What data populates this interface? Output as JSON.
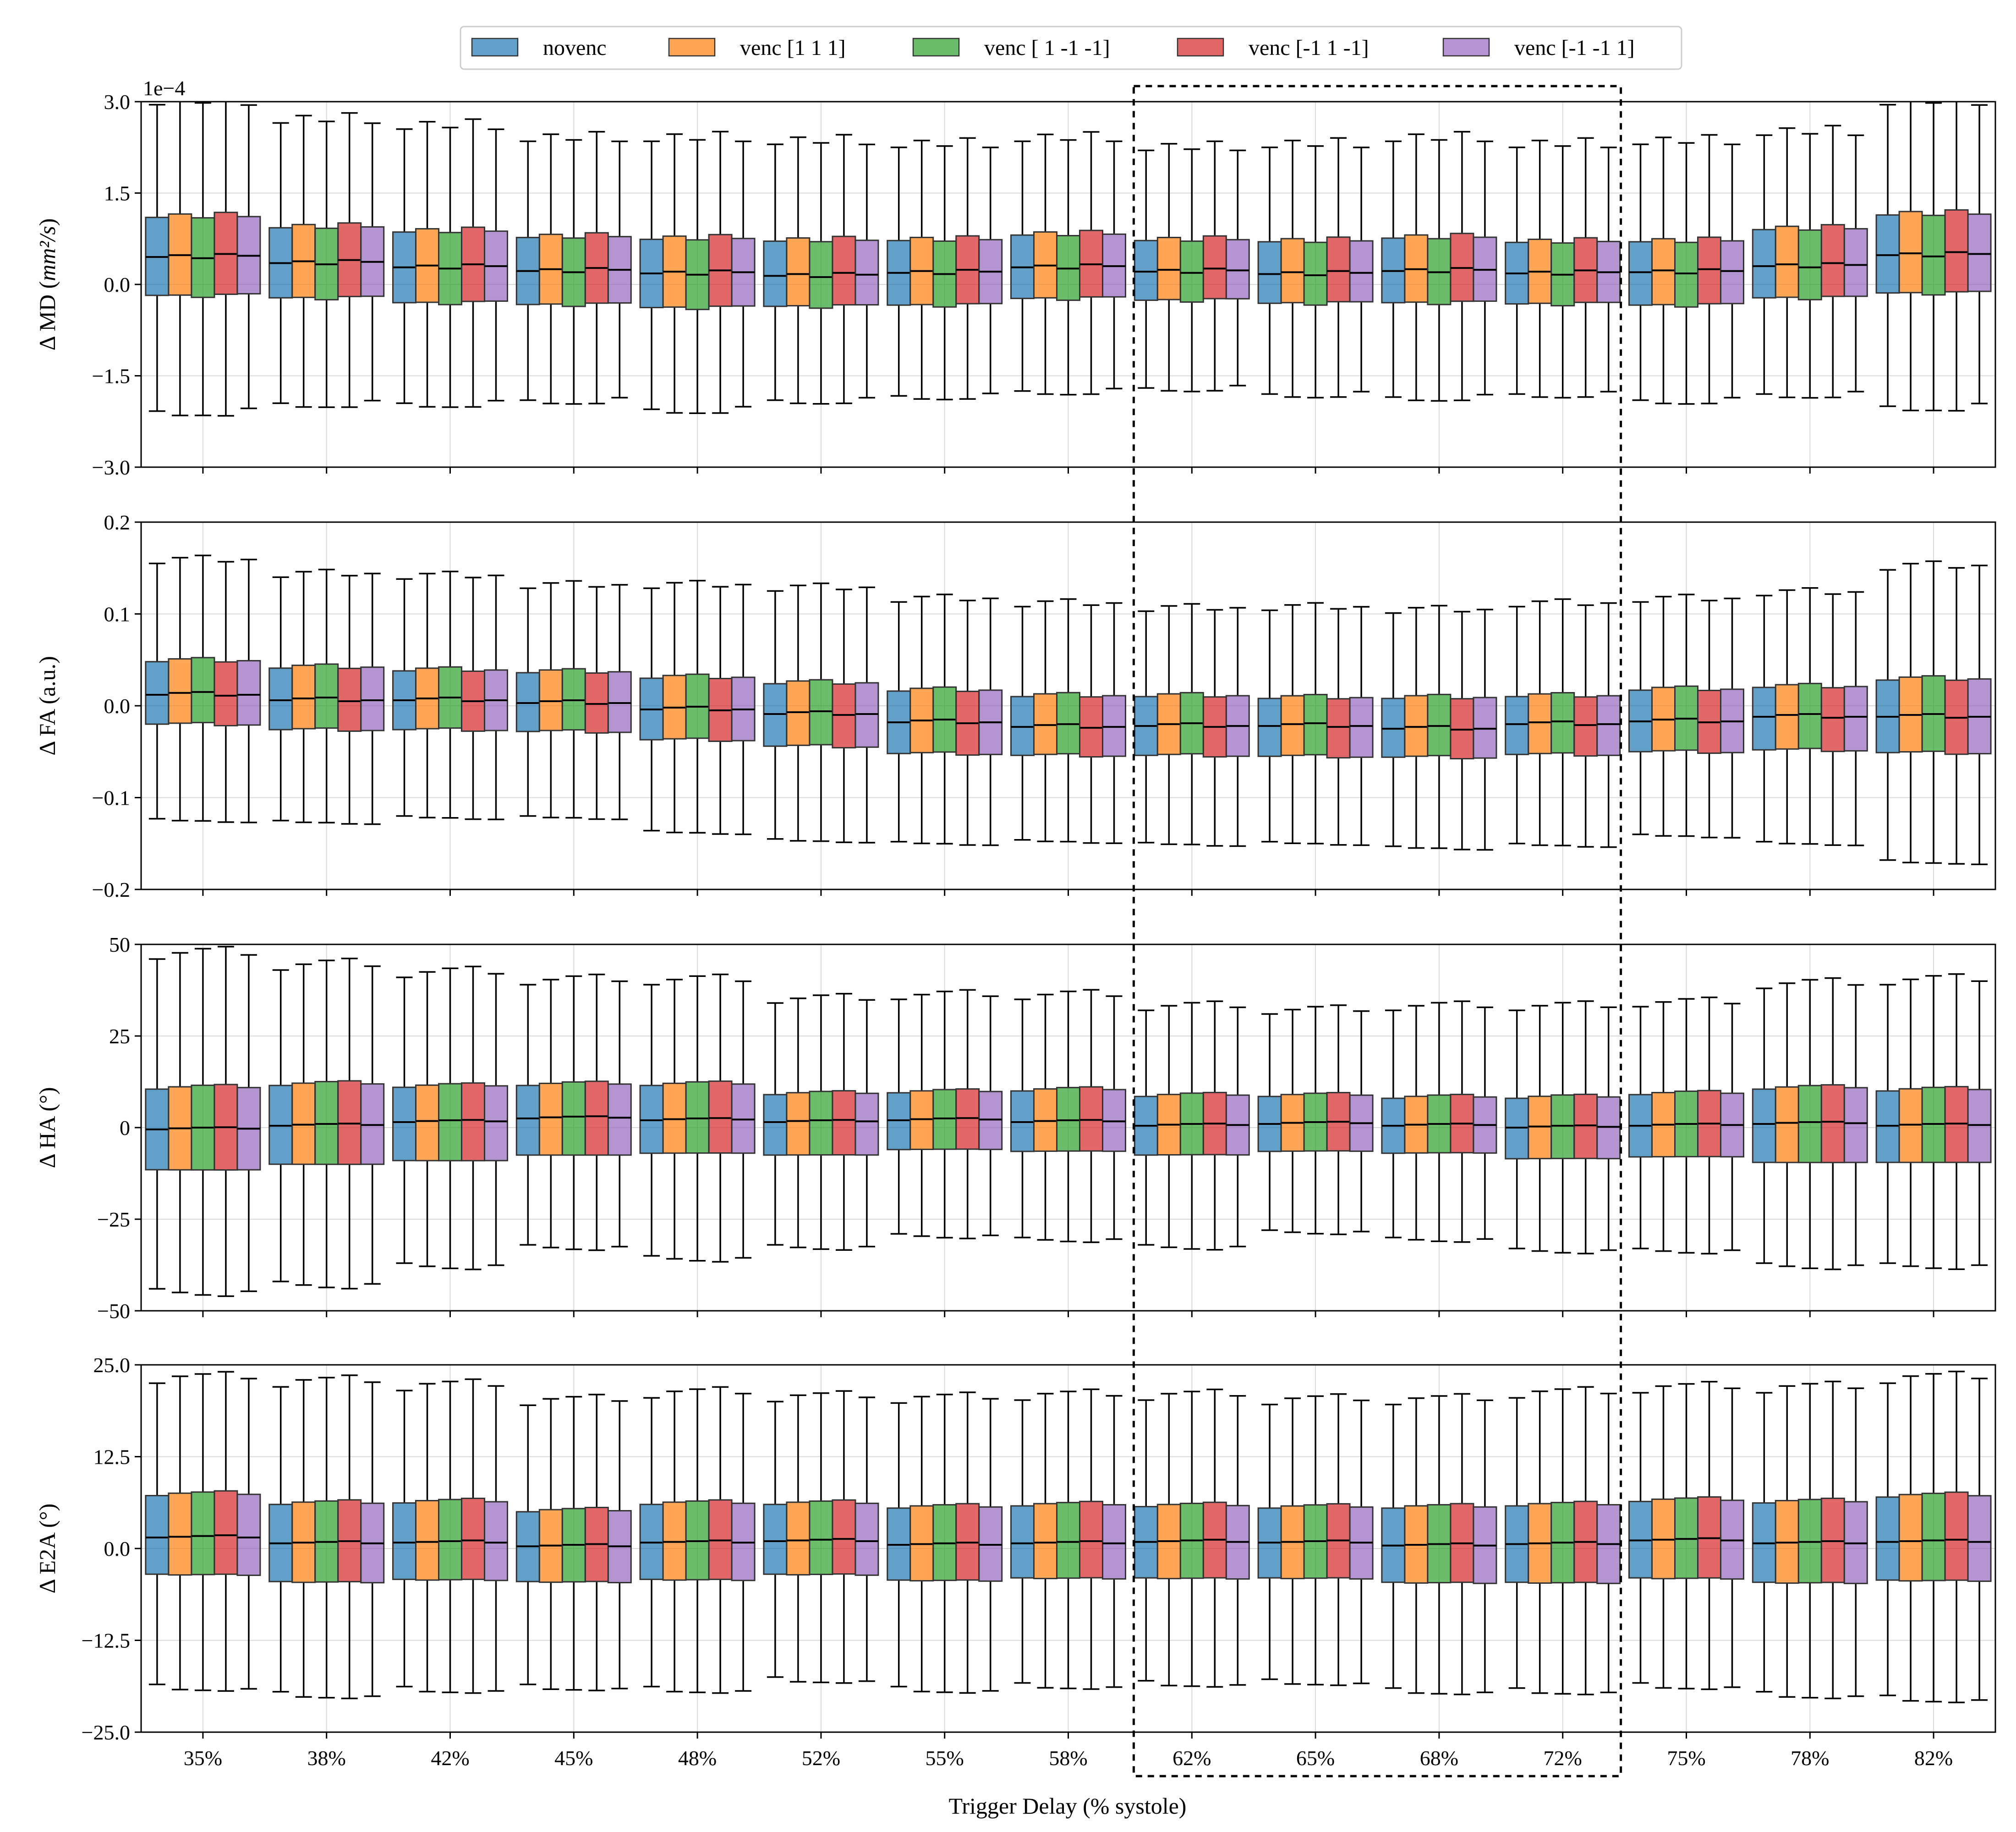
{
  "chart_data": {
    "type": "boxplot",
    "xlabel": "Trigger Delay (% systole)",
    "categories": [
      "35%",
      "38%",
      "42%",
      "45%",
      "48%",
      "52%",
      "55%",
      "58%",
      "62%",
      "65%",
      "68%",
      "72%",
      "75%",
      "78%",
      "82%"
    ],
    "highlight": {
      "label": "dashed box",
      "from_category": "62%",
      "to_category": "72%"
    },
    "series": [
      {
        "name": "novenc",
        "color": "#1f77b4"
      },
      {
        "name": "venc [1 1 1]",
        "color": "#ff7f0e"
      },
      {
        "name": "venc [ 1 -1 -1]",
        "color": "#2ca02c"
      },
      {
        "name": "venc [-1  1 -1]",
        "color": "#d62728"
      },
      {
        "name": "venc [-1 -1  1]",
        "color": "#9467bd"
      }
    ],
    "panels": [
      {
        "id": "md",
        "ylabel": "Δ MD (mm²/s)",
        "ylabel_main": "Δ MD (",
        "ylabel_unit": "mm²/s",
        "ylabel_tail": ")",
        "offset_text": "1e−4",
        "ylim": [
          -3.0,
          3.0
        ],
        "yticks": [
          -3.0,
          -1.5,
          0.0,
          1.5,
          3.0
        ],
        "ytick_labels": [
          "−3.0",
          "−1.5",
          "0.0",
          "1.5",
          "3.0"
        ],
        "base": {
          "median": [
            0.45,
            0.35,
            0.28,
            0.22,
            0.18,
            0.14,
            0.19,
            0.28,
            0.21,
            0.17,
            0.22,
            0.18,
            0.2,
            0.3,
            0.48
          ],
          "q1": [
            -0.18,
            -0.22,
            -0.3,
            -0.33,
            -0.38,
            -0.36,
            -0.34,
            -0.23,
            -0.26,
            -0.31,
            -0.3,
            -0.32,
            -0.34,
            -0.22,
            -0.14
          ],
          "q3": [
            1.1,
            0.93,
            0.86,
            0.77,
            0.74,
            0.71,
            0.72,
            0.81,
            0.72,
            0.7,
            0.76,
            0.69,
            0.7,
            0.9,
            1.14
          ],
          "wlo": [
            -2.08,
            -1.95,
            -1.95,
            -1.9,
            -2.05,
            -1.9,
            -1.83,
            -1.75,
            -1.7,
            -1.8,
            -1.85,
            -1.8,
            -1.9,
            -1.8,
            -2.0
          ],
          "whi": [
            2.95,
            2.65,
            2.55,
            2.35,
            2.35,
            2.3,
            2.25,
            2.35,
            2.2,
            2.25,
            2.35,
            2.25,
            2.3,
            2.45,
            2.95
          ]
        },
        "series_offsets": [
          0.0,
          0.03,
          -0.02,
          0.05,
          0.02
        ],
        "series_spread": [
          1.0,
          1.04,
          1.02,
          1.05,
          0.99
        ]
      },
      {
        "id": "fa",
        "ylabel": "Δ FA (a.u.)",
        "ylim": [
          -0.2,
          0.2
        ],
        "yticks": [
          -0.2,
          -0.1,
          0.0,
          0.1,
          0.2
        ],
        "ytick_labels": [
          "−0.2",
          "−0.1",
          "0.0",
          "0.1",
          "0.2"
        ],
        "base": {
          "median": [
            0.012,
            0.006,
            0.006,
            0.003,
            -0.004,
            -0.009,
            -0.018,
            -0.023,
            -0.022,
            -0.022,
            -0.025,
            -0.02,
            -0.017,
            -0.012,
            -0.012
          ],
          "q1": [
            -0.02,
            -0.026,
            -0.026,
            -0.028,
            -0.037,
            -0.044,
            -0.052,
            -0.054,
            -0.054,
            -0.055,
            -0.056,
            -0.053,
            -0.05,
            -0.048,
            -0.051
          ],
          "q3": [
            0.048,
            0.041,
            0.038,
            0.036,
            0.03,
            0.024,
            0.016,
            0.01,
            0.01,
            0.008,
            0.008,
            0.01,
            0.017,
            0.02,
            0.028
          ],
          "wlo": [
            -0.123,
            -0.125,
            -0.12,
            -0.12,
            -0.136,
            -0.145,
            -0.148,
            -0.146,
            -0.149,
            -0.148,
            -0.153,
            -0.15,
            -0.14,
            -0.148,
            -0.168
          ],
          "whi": [
            0.155,
            0.14,
            0.138,
            0.128,
            0.128,
            0.125,
            0.113,
            0.108,
            0.103,
            0.104,
            0.101,
            0.108,
            0.113,
            0.12,
            0.148
          ]
        },
        "series_offsets": [
          0.0,
          0.002,
          0.003,
          -0.001,
          0.0
        ],
        "series_spread": [
          1.0,
          1.03,
          1.04,
          1.02,
          1.03
        ]
      },
      {
        "id": "ha",
        "ylabel": "Δ HA (°)",
        "ylim": [
          -50,
          50
        ],
        "yticks": [
          -50,
          -25,
          0,
          25,
          50
        ],
        "ytick_labels": [
          "−50",
          "−25",
          "0",
          "25",
          "50"
        ],
        "base": {
          "median": [
            -0.5,
            0.5,
            1.5,
            2.5,
            2.0,
            1.5,
            2.0,
            1.5,
            0.5,
            1.0,
            0.5,
            0.0,
            0.5,
            1.0,
            0.5
          ],
          "q1": [
            -11.5,
            -10,
            -9,
            -7.5,
            -7,
            -7.5,
            -6,
            -6.5,
            -7.5,
            -6.5,
            -7,
            -8.5,
            -8,
            -9.5,
            -9.5
          ],
          "q3": [
            10.5,
            11.5,
            11,
            11.5,
            11.5,
            9,
            9.5,
            10,
            8.5,
            8.5,
            8,
            8,
            9,
            10.5,
            10
          ],
          "wlo": [
            -44,
            -42,
            -37,
            -32,
            -35,
            -32,
            -29,
            -30,
            -32,
            -28,
            -30,
            -33,
            -33,
            -37,
            -37
          ],
          "whi": [
            46,
            43,
            41,
            39,
            39,
            34,
            35,
            35,
            32,
            31,
            32,
            32,
            33,
            38,
            39
          ]
        },
        "series_offsets": [
          0.0,
          0.3,
          0.5,
          0.6,
          0.2
        ],
        "series_spread": [
          1.0,
          1.03,
          1.05,
          1.06,
          1.02
        ]
      },
      {
        "id": "e2a",
        "ylabel": "Δ E2A (°)",
        "ylim": [
          -25.0,
          25.0
        ],
        "yticks": [
          -25.0,
          -12.5,
          0.0,
          12.5,
          25.0
        ],
        "ytick_labels": [
          "−25.0",
          "−12.5",
          "0.0",
          "12.5",
          "25.0"
        ],
        "base": {
          "median": [
            1.5,
            0.7,
            0.8,
            0.3,
            0.8,
            1.0,
            0.5,
            0.7,
            0.9,
            0.8,
            0.4,
            0.6,
            1.1,
            0.7,
            0.9
          ],
          "q1": [
            -3.5,
            -4.5,
            -4.2,
            -4.5,
            -4.2,
            -3.5,
            -4.3,
            -4.0,
            -4.0,
            -4.0,
            -4.6,
            -4.6,
            -4.0,
            -4.6,
            -4.3
          ],
          "q3": [
            7.2,
            6.0,
            6.2,
            5.0,
            6.0,
            6.0,
            5.5,
            5.8,
            5.7,
            5.5,
            5.5,
            5.8,
            6.4,
            6.2,
            7.0
          ],
          "wlo": [
            -18.5,
            -19.5,
            -18.8,
            -18.5,
            -18.8,
            -17.5,
            -18.8,
            -18.3,
            -18.0,
            -17.8,
            -19.0,
            -19.0,
            -18.3,
            -19.5,
            -20.0
          ],
          "whi": [
            22.5,
            22.0,
            21.5,
            19.5,
            20.5,
            20.0,
            19.8,
            20.2,
            20.2,
            19.6,
            19.6,
            20.5,
            21.2,
            21.2,
            22.5
          ]
        },
        "series_offsets": [
          0.0,
          0.1,
          0.2,
          0.3,
          0.0
        ],
        "series_spread": [
          1.0,
          1.04,
          1.05,
          1.06,
          1.03
        ]
      }
    ]
  }
}
